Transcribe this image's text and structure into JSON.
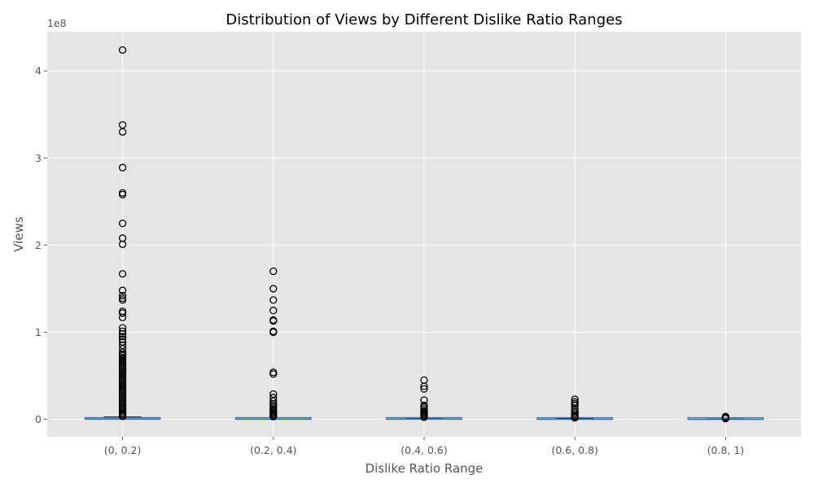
{
  "chart_data": {
    "type": "box",
    "title": "Distribution of Views by Different Dislike Ratio Ranges",
    "xlabel": "Dislike Ratio Range",
    "ylabel": "Views",
    "y_scale_label": "1e8",
    "y_multiplier": 100000000,
    "ylim": [
      -20000000,
      445000000
    ],
    "yticks": [
      0,
      100000000,
      200000000,
      300000000,
      400000000
    ],
    "ytick_labels": [
      "0",
      "1",
      "2",
      "3",
      "4"
    ],
    "grid": true,
    "categories": [
      "(0, 0.2)",
      "(0.2, 0.4)",
      "(0.4, 0.6)",
      "(0.6, 0.8)",
      "(0.8, 1)"
    ],
    "boxes": [
      {
        "category": "(0, 0.2)",
        "whisker_low": 0,
        "q1": 100000,
        "median": 400000,
        "q3": 1200000,
        "whisker_high": 2800000,
        "outliers": [
          424000000,
          338000000,
          330000000,
          289000000,
          260000000,
          258000000,
          225000000,
          208000000,
          201000000,
          167000000,
          148000000,
          142000000,
          139000000,
          137000000,
          124000000,
          122000000,
          117000000,
          105000000,
          101000000,
          98000000,
          95000000,
          92000000,
          89000000,
          85000000,
          81000000,
          77000000,
          75000000,
          73000000,
          71000000,
          69000000,
          67000000,
          65000000,
          63000000,
          61000000,
          59000000,
          57000000,
          55000000,
          53000000,
          51000000,
          49000000,
          47000000,
          45000000,
          43000000,
          41000000,
          39000000,
          37000000,
          35000000,
          33000000,
          31000000,
          29000000,
          27000000,
          25000000,
          23000000,
          21000000,
          19000000,
          17000000,
          15000000,
          13000000,
          11000000,
          9000000,
          7000000,
          5000000,
          3500000
        ]
      },
      {
        "category": "(0.2, 0.4)",
        "whisker_low": 0,
        "q1": 100000,
        "median": 300000,
        "q3": 900000,
        "whisker_high": 2000000,
        "outliers": [
          170000000,
          150000000,
          137000000,
          125000000,
          114000000,
          113000000,
          101000000,
          100000000,
          54000000,
          52000000,
          29000000,
          25000000,
          21000000,
          18000000,
          16000000,
          14000000,
          12000000,
          10000000,
          8500000,
          7000000,
          5500000,
          4000000,
          3000000
        ]
      },
      {
        "category": "(0.4, 0.6)",
        "whisker_low": 0,
        "q1": 100000,
        "median": 300000,
        "q3": 800000,
        "whisker_high": 1600000,
        "outliers": [
          45000000,
          38000000,
          35000000,
          22000000,
          16000000,
          14000000,
          12000000,
          10000000,
          8500000,
          7000000,
          5500000,
          4500000,
          3500000,
          2500000
        ]
      },
      {
        "category": "(0.6, 0.8)",
        "whisker_low": 0,
        "q1": 50000,
        "median": 200000,
        "q3": 500000,
        "whisker_high": 1100000,
        "outliers": [
          23000000,
          20000000,
          18000000,
          16000000,
          12000000,
          9000000,
          7000000,
          5000000,
          3500000,
          2500000,
          1800000
        ]
      },
      {
        "category": "(0.8, 1)",
        "whisker_low": 0,
        "q1": 30000,
        "median": 100000,
        "q3": 300000,
        "whisker_high": 600000,
        "outliers": [
          3200000,
          2500000,
          1800000,
          1300000,
          900000
        ]
      }
    ],
    "colors": {
      "background": "#e5e5e5",
      "grid": "#ffffff",
      "box_edge": "#4c72b0",
      "median": "#1f77b4",
      "whisker": "#000000",
      "outlier_edge": "#000000"
    }
  }
}
